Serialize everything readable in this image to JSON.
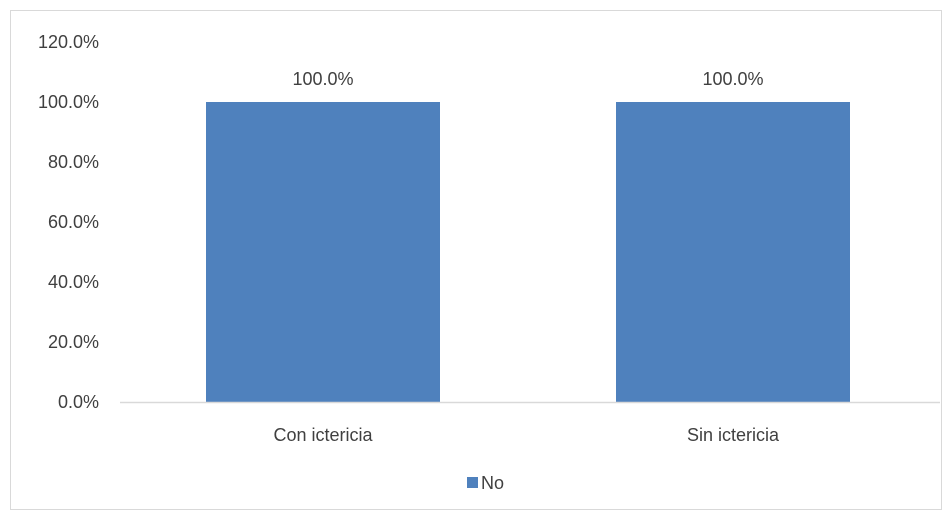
{
  "chart_data": {
    "type": "bar",
    "title": "",
    "xlabel": "",
    "ylabel": "",
    "categories": [
      "Con ictericia",
      "Sin ictericia"
    ],
    "series": [
      {
        "name": "No",
        "values": [
          100.0,
          100.0
        ],
        "value_labels": [
          "100.0%",
          "100.0%"
        ],
        "color": "#4f81bd"
      }
    ],
    "ylim": [
      0,
      120
    ],
    "yticks": [
      0,
      20,
      40,
      60,
      80,
      100,
      120
    ],
    "ytick_labels": [
      "0.0%",
      "20.0%",
      "40.0%",
      "60.0%",
      "80.0%",
      "100.0%",
      "120.0%"
    ],
    "grid": false,
    "legend": {
      "position": "bottom",
      "entries": [
        "No"
      ]
    },
    "colors": {
      "bar": "#4f81bd",
      "axis": "#d9d9d9",
      "text": "#404040"
    }
  }
}
